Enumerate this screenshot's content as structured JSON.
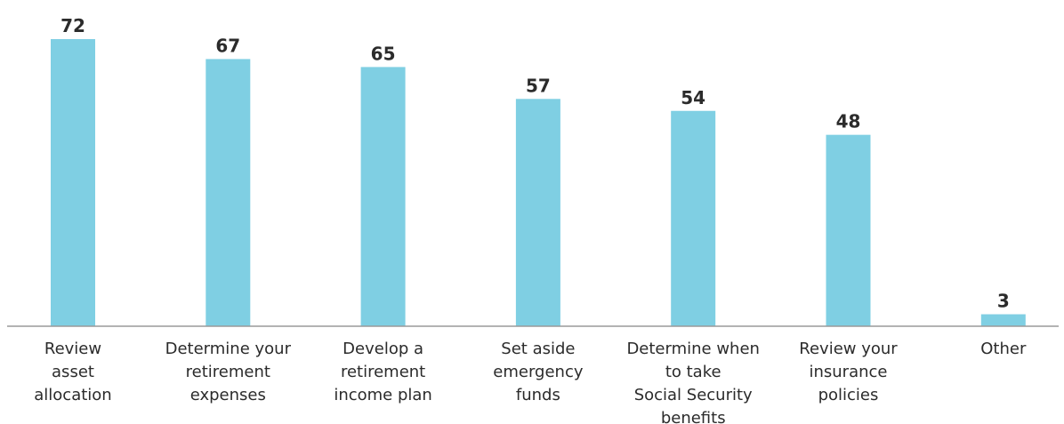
{
  "chart_data": {
    "type": "bar",
    "categories": [
      [
        "Review",
        "asset",
        "allocation"
      ],
      [
        "Determine your",
        "retirement",
        "expenses"
      ],
      [
        "Develop a",
        "retirement",
        "income plan"
      ],
      [
        "Set aside",
        "emergency",
        "funds"
      ],
      [
        "Determine when",
        "to take",
        "Social Security",
        "benefits"
      ],
      [
        "Review your",
        "insurance",
        "policies"
      ],
      [
        "Other"
      ]
    ],
    "values": [
      72,
      67,
      65,
      57,
      54,
      48,
      3
    ],
    "value_labels": [
      "72",
      "67",
      "65",
      "57",
      "54",
      "48",
      "3"
    ],
    "ylim": [
      0,
      72
    ],
    "grid": false,
    "bar_color": "#7fcfe3",
    "axis_color": "#9a9a9a",
    "text_color": "#2b2b2b"
  }
}
